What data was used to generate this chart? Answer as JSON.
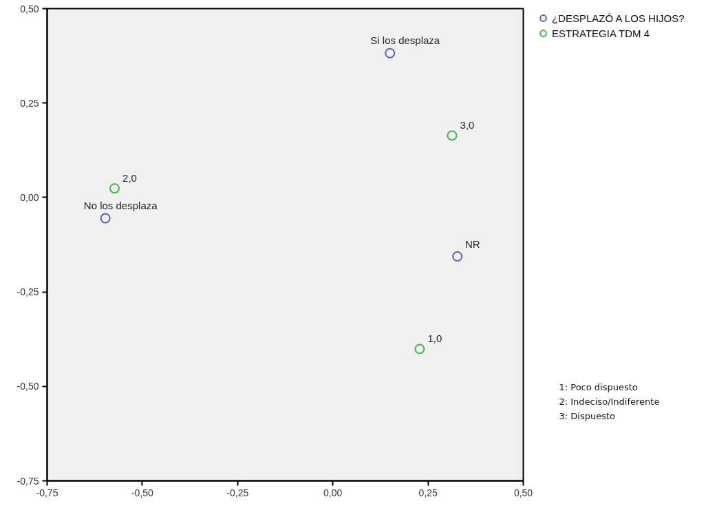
{
  "chart_data": {
    "type": "scatter",
    "marker": "circle",
    "legend": "top right",
    "xlim": [
      -0.75,
      0.5
    ],
    "ylim": [
      -0.75,
      0.5
    ],
    "xticks": [
      {
        "value": -0.75,
        "label": "-0,75"
      },
      {
        "value": -0.5,
        "label": "-0,50"
      },
      {
        "value": -0.25,
        "label": "-0,25"
      },
      {
        "value": 0,
        "label": "0,00"
      },
      {
        "value": 0.25,
        "label": "0,25"
      },
      {
        "value": 0.5,
        "label": "0,50"
      }
    ],
    "yticks": [
      {
        "value": -0.75,
        "label": "-0,75"
      },
      {
        "value": -0.5,
        "label": "-0,50"
      },
      {
        "value": -0.25,
        "label": "-0,25"
      },
      {
        "value": 0,
        "label": "0,00"
      },
      {
        "value": 0.25,
        "label": "0,25"
      },
      {
        "value": 0.5,
        "label": "0,50"
      }
    ],
    "series": [
      {
        "name": "¿DESPLAZÓ A LOS HIJOS?",
        "color": "#5664b4",
        "x": [
          0.15,
          -0.597,
          0.327
        ],
        "values": [
          0.382,
          -0.055,
          -0.156
        ]
      },
      {
        "name": "ESTRATEGIA TDM 4",
        "color": "#40b848",
        "x": [
          0.313,
          -0.573,
          0.228
        ],
        "values": [
          0.164,
          0.024,
          -0.401
        ]
      }
    ],
    "annotations": [
      {
        "text": "Si los desplaza",
        "x": 0.15,
        "y": 0.382
      },
      {
        "text": "No los desplaza",
        "x": -0.597,
        "y": -0.055
      },
      {
        "text": "NR",
        "x": 0.327,
        "y": -0.156
      },
      {
        "text": "3,0",
        "x": 0.313,
        "y": 0.164
      },
      {
        "text": "2,0",
        "x": -0.573,
        "y": 0.024
      },
      {
        "text": "1,0",
        "x": 0.228,
        "y": -0.401
      },
      "1: Poco dispuesto",
      "2: Indeciso/Indiferente",
      "3: Dispuesto"
    ]
  }
}
